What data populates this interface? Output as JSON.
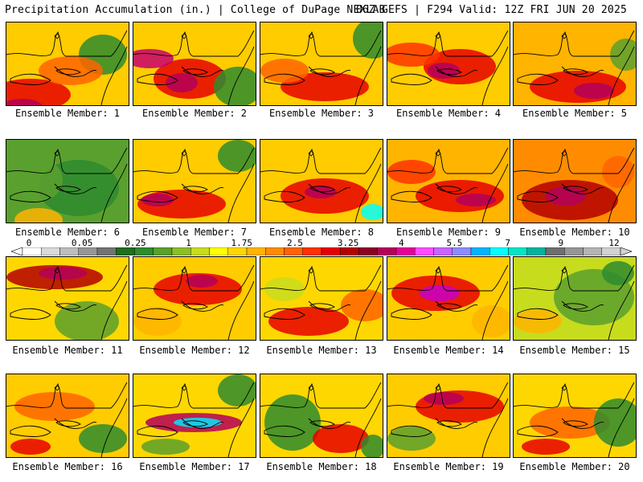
{
  "header": {
    "left_title": "Precipitation Accumulation (in.) | College of DuPage NEXLAB",
    "right_title": "06Z GEFS | F294 Valid: 12Z FRI JUN 20 2025"
  },
  "colorbar": {
    "colors": [
      "#ffffff",
      "#d9d9d9",
      "#bdbdbd",
      "#969696",
      "#737373",
      "#1e6e1e",
      "#2e8b2e",
      "#5aa02e",
      "#8cbe28",
      "#c8dc1e",
      "#ffff00",
      "#ffd700",
      "#ffb400",
      "#ff8c00",
      "#ff6400",
      "#ff3200",
      "#e60000",
      "#b40000",
      "#8c0028",
      "#b4005a",
      "#e6009b",
      "#ff4dff",
      "#c864ff",
      "#8c8cff",
      "#00b4ff",
      "#00ffff",
      "#00e6c8",
      "#00b4a0",
      "#6e6e6e",
      "#969696",
      "#b4b4b4",
      "#d2d2d2"
    ],
    "tick_labels": [
      "0",
      "0.05",
      "0.25",
      "1",
      "1.75",
      "2.5",
      "3.25",
      "4",
      "5.5",
      "7",
      "9",
      "12"
    ]
  },
  "members": [
    {
      "label": "Ensemble Member: 1"
    },
    {
      "label": "Ensemble Member: 2"
    },
    {
      "label": "Ensemble Member: 3"
    },
    {
      "label": "Ensemble Member: 4"
    },
    {
      "label": "Ensemble Member: 5"
    },
    {
      "label": "Ensemble Member: 6"
    },
    {
      "label": "Ensemble Member: 7"
    },
    {
      "label": "Ensemble Member: 8"
    },
    {
      "label": "Ensemble Member: 9"
    },
    {
      "label": "Ensemble Member: 10"
    },
    {
      "label": "Ensemble Member: 11"
    },
    {
      "label": "Ensemble Member: 12"
    },
    {
      "label": "Ensemble Member: 13"
    },
    {
      "label": "Ensemble Member: 14"
    },
    {
      "label": "Ensemble Member: 15"
    },
    {
      "label": "Ensemble Member: 16"
    },
    {
      "label": "Ensemble Member: 17"
    },
    {
      "label": "Ensemble Member: 18"
    },
    {
      "label": "Ensemble Member: 19"
    },
    {
      "label": "Ensemble Member: 20"
    }
  ]
}
